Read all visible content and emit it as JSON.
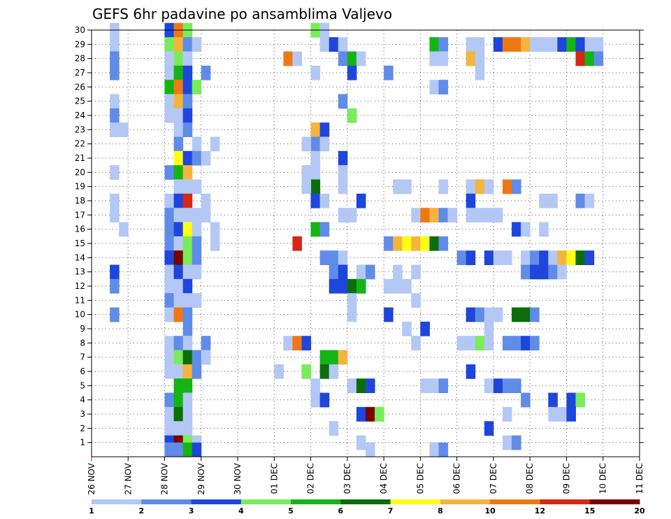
{
  "chart_data": {
    "type": "heatmap",
    "title": "GEFS 6hr padavine po ansamblima Valjevo",
    "xlabel": "",
    "ylabel": "",
    "x_ticks": [
      "26 NOV",
      "27 NOV",
      "28 NOV",
      "29 NOV",
      "30 NOV",
      "01 DEC",
      "02 DEC",
      "03 DEC",
      "04 DEC",
      "05 DEC",
      "06 DEC",
      "07 DEC",
      "08 DEC",
      "09 DEC",
      "10 DEC",
      "11 DEC"
    ],
    "y_ticks": [
      1,
      2,
      3,
      4,
      5,
      6,
      7,
      8,
      9,
      10,
      11,
      12,
      13,
      14,
      15,
      16,
      17,
      18,
      19,
      20,
      21,
      22,
      23,
      24,
      25,
      26,
      27,
      28,
      29,
      30
    ],
    "x_range_days": [
      0,
      15
    ],
    "y_range": [
      0,
      30
    ],
    "time_step_hours": 6,
    "grid": "dotted",
    "colorbar": {
      "position": "bottom",
      "labels": [
        "1",
        "2",
        "3",
        "4",
        "5",
        "6",
        "7",
        "8",
        "10",
        "12",
        "15",
        "20"
      ],
      "colors": [
        "#b4c8f5",
        "#5f8ce8",
        "#1e46dc",
        "#78ec5a",
        "#14b414",
        "#0b6e0b",
        "#ffff14",
        "#f5b43c",
        "#f07814",
        "#d72814",
        "#780000"
      ]
    },
    "cells": [
      [
        0.5,
        30,
        0
      ],
      [
        0.5,
        29,
        0
      ],
      [
        0.5,
        28,
        1
      ],
      [
        0.5,
        27,
        1
      ],
      [
        0.5,
        25,
        0
      ],
      [
        0.5,
        24,
        1
      ],
      [
        0.5,
        23,
        0
      ],
      [
        0.75,
        23,
        0
      ],
      [
        0.5,
        20,
        0
      ],
      [
        0.5,
        18,
        0
      ],
      [
        0.5,
        17,
        0
      ],
      [
        0.75,
        16,
        0
      ],
      [
        0.5,
        13,
        2
      ],
      [
        0.5,
        12,
        1
      ],
      [
        0.5,
        10,
        1
      ],
      [
        2,
        30,
        2
      ],
      [
        2.25,
        30,
        8
      ],
      [
        2.5,
        30,
        3
      ],
      [
        2,
        29,
        3
      ],
      [
        2.25,
        29,
        7
      ],
      [
        2.5,
        29,
        1
      ],
      [
        2.75,
        29,
        0
      ],
      [
        2,
        28,
        0
      ],
      [
        2.25,
        28,
        3
      ],
      [
        2.5,
        28,
        0
      ],
      [
        2,
        27,
        0
      ],
      [
        2.25,
        27,
        4
      ],
      [
        2.5,
        27,
        2
      ],
      [
        3,
        27,
        1
      ],
      [
        2,
        26,
        4
      ],
      [
        2.25,
        26,
        8
      ],
      [
        2.5,
        26,
        2
      ],
      [
        2.75,
        26,
        3
      ],
      [
        2,
        25,
        0
      ],
      [
        2.25,
        25,
        7
      ],
      [
        2.5,
        25,
        1
      ],
      [
        2,
        24,
        0
      ],
      [
        2.25,
        24,
        0
      ],
      [
        2.5,
        24,
        2
      ],
      [
        2.25,
        23,
        0
      ],
      [
        2.5,
        23,
        1
      ],
      [
        2.25,
        22,
        1
      ],
      [
        2.75,
        22,
        0
      ],
      [
        3.25,
        22,
        0
      ],
      [
        2.25,
        21,
        6
      ],
      [
        2.5,
        21,
        2
      ],
      [
        2.75,
        21,
        1
      ],
      [
        3,
        21,
        0
      ],
      [
        2,
        20,
        1
      ],
      [
        2.25,
        20,
        4
      ],
      [
        2.5,
        20,
        7
      ],
      [
        2.25,
        19,
        0
      ],
      [
        2.5,
        19,
        0
      ],
      [
        2.75,
        19,
        0
      ],
      [
        2,
        18,
        0
      ],
      [
        2.25,
        18,
        2
      ],
      [
        2.5,
        18,
        9
      ],
      [
        3,
        18,
        0
      ],
      [
        2,
        17,
        1
      ],
      [
        2.25,
        17,
        0
      ],
      [
        2.5,
        17,
        0
      ],
      [
        2.75,
        17,
        0
      ],
      [
        3,
        17,
        0
      ],
      [
        2,
        16,
        1
      ],
      [
        2.25,
        16,
        2
      ],
      [
        2.5,
        16,
        6
      ],
      [
        2.75,
        16,
        0
      ],
      [
        3.25,
        16,
        0
      ],
      [
        2,
        15,
        1
      ],
      [
        2.25,
        15,
        0
      ],
      [
        2.5,
        15,
        3
      ],
      [
        2.75,
        15,
        1
      ],
      [
        3.25,
        15,
        0
      ],
      [
        2,
        14,
        2
      ],
      [
        2.25,
        14,
        10
      ],
      [
        2.5,
        14,
        3
      ],
      [
        2.75,
        14,
        1
      ],
      [
        2,
        13,
        0
      ],
      [
        2.25,
        13,
        2
      ],
      [
        2.5,
        13,
        0
      ],
      [
        2.75,
        13,
        0
      ],
      [
        2,
        12,
        0
      ],
      [
        2.25,
        12,
        0
      ],
      [
        2.5,
        12,
        2
      ],
      [
        2,
        11,
        1
      ],
      [
        2.25,
        11,
        0
      ],
      [
        2.5,
        11,
        0
      ],
      [
        2.75,
        11,
        0
      ],
      [
        2,
        10,
        0
      ],
      [
        2.25,
        10,
        8
      ],
      [
        2.5,
        10,
        1
      ],
      [
        2.5,
        9,
        1
      ],
      [
        2,
        8,
        0
      ],
      [
        2.25,
        8,
        1
      ],
      [
        2.5,
        8,
        0
      ],
      [
        3,
        8,
        1
      ],
      [
        2,
        7,
        0
      ],
      [
        2.25,
        7,
        3
      ],
      [
        2.5,
        7,
        5
      ],
      [
        2.75,
        7,
        1
      ],
      [
        3,
        7,
        0
      ],
      [
        2,
        6,
        0
      ],
      [
        2.25,
        6,
        0
      ],
      [
        2.5,
        6,
        7
      ],
      [
        2.75,
        6,
        1
      ],
      [
        2.25,
        5,
        4
      ],
      [
        2.5,
        5,
        4
      ],
      [
        2,
        4,
        1
      ],
      [
        2.25,
        4,
        4
      ],
      [
        2.5,
        4,
        0
      ],
      [
        2,
        3,
        0
      ],
      [
        2.25,
        3,
        5
      ],
      [
        2.5,
        3,
        0
      ],
      [
        2,
        2,
        0
      ],
      [
        2.25,
        2,
        0
      ],
      [
        2.5,
        2,
        0
      ],
      [
        2,
        1,
        2
      ],
      [
        2.25,
        1,
        10
      ],
      [
        2.5,
        1,
        3
      ],
      [
        2.75,
        1,
        0
      ],
      [
        2,
        0.5,
        1
      ],
      [
        2.25,
        0.5,
        1
      ],
      [
        2.5,
        0.5,
        4
      ],
      [
        2.75,
        0.5,
        2
      ],
      [
        6,
        30,
        3
      ],
      [
        6.25,
        30,
        0
      ],
      [
        6.25,
        29,
        0
      ],
      [
        6.5,
        29,
        2
      ],
      [
        6.75,
        29,
        0
      ],
      [
        5.25,
        28,
        8
      ],
      [
        5.5,
        28,
        0
      ],
      [
        6.75,
        28,
        1
      ],
      [
        7,
        28,
        4
      ],
      [
        7.25,
        28,
        0
      ],
      [
        6,
        27,
        0
      ],
      [
        7,
        27,
        2
      ],
      [
        8,
        27,
        1
      ],
      [
        6.75,
        25,
        1
      ],
      [
        7,
        24,
        3
      ],
      [
        6,
        23,
        7
      ],
      [
        6.25,
        23,
        2
      ],
      [
        6,
        22,
        1
      ],
      [
        6.25,
        22,
        0
      ],
      [
        5.75,
        22,
        0
      ],
      [
        6,
        21,
        0
      ],
      [
        6.75,
        21,
        2
      ],
      [
        5.75,
        20,
        0
      ],
      [
        6,
        20,
        0
      ],
      [
        6.75,
        20,
        0
      ],
      [
        6,
        19,
        5
      ],
      [
        5.75,
        19,
        0
      ],
      [
        6.75,
        19,
        0
      ],
      [
        6,
        18,
        2
      ],
      [
        6.25,
        18,
        0
      ],
      [
        7.25,
        18,
        2
      ],
      [
        6.75,
        17,
        0
      ],
      [
        7,
        17,
        0
      ],
      [
        6,
        16,
        4
      ],
      [
        6.25,
        16,
        1
      ],
      [
        5.5,
        15,
        9
      ],
      [
        6.25,
        14,
        1
      ],
      [
        6.5,
        14,
        1
      ],
      [
        6.75,
        14,
        0
      ],
      [
        6.5,
        13,
        1
      ],
      [
        6.75,
        13,
        2
      ],
      [
        7.25,
        13,
        0
      ],
      [
        7.5,
        13,
        1
      ],
      [
        6.5,
        12,
        2
      ],
      [
        6.75,
        12,
        2
      ],
      [
        7,
        12,
        5
      ],
      [
        7.25,
        12,
        4
      ],
      [
        7,
        11,
        0
      ],
      [
        7,
        10,
        0
      ],
      [
        5.25,
        8,
        0
      ],
      [
        5.5,
        8,
        8
      ],
      [
        5.75,
        8,
        2
      ],
      [
        6.25,
        7,
        4
      ],
      [
        6.5,
        7,
        4
      ],
      [
        6.75,
        7,
        7
      ],
      [
        5,
        6,
        0
      ],
      [
        5.75,
        6,
        3
      ],
      [
        6.25,
        6,
        5
      ],
      [
        6.5,
        6,
        0
      ],
      [
        6,
        5,
        0
      ],
      [
        6,
        4,
        0
      ],
      [
        6.25,
        4,
        2
      ],
      [
        7,
        5,
        0
      ],
      [
        7.25,
        5,
        5
      ],
      [
        7.5,
        5,
        2
      ],
      [
        7.25,
        3,
        2
      ],
      [
        7.5,
        3,
        10
      ],
      [
        7.75,
        3,
        3
      ],
      [
        6.5,
        2,
        0
      ],
      [
        7.25,
        1,
        0
      ],
      [
        7.5,
        0.5,
        0
      ],
      [
        9.25,
        29,
        4
      ],
      [
        9.5,
        29,
        1
      ],
      [
        9.25,
        28,
        0
      ],
      [
        9.5,
        28,
        0
      ],
      [
        9.25,
        26,
        0
      ],
      [
        9.5,
        26,
        1
      ],
      [
        8.25,
        19,
        0
      ],
      [
        8.5,
        19,
        0
      ],
      [
        9.5,
        19,
        0
      ],
      [
        8.75,
        17,
        0
      ],
      [
        9,
        17,
        8
      ],
      [
        9.25,
        17,
        7
      ],
      [
        9.5,
        17,
        1
      ],
      [
        9.75,
        17,
        0
      ],
      [
        8,
        15,
        1
      ],
      [
        8.25,
        15,
        7
      ],
      [
        8.5,
        15,
        6
      ],
      [
        8.75,
        15,
        7
      ],
      [
        9,
        15,
        6
      ],
      [
        9.25,
        15,
        5
      ],
      [
        9.5,
        15,
        1
      ],
      [
        8,
        10,
        2
      ],
      [
        8.5,
        9,
        0
      ],
      [
        9,
        9,
        2
      ],
      [
        8.75,
        8,
        0
      ],
      [
        9,
        5,
        0
      ],
      [
        9.25,
        5,
        0
      ],
      [
        9.5,
        5,
        1
      ],
      [
        9.25,
        0.5,
        0
      ],
      [
        9.5,
        0.5,
        1
      ],
      [
        8.25,
        12,
        0
      ],
      [
        8.5,
        12,
        0
      ],
      [
        8.75,
        11,
        0
      ],
      [
        8.75,
        13,
        0
      ],
      [
        8,
        12,
        0
      ],
      [
        8.25,
        13,
        0
      ],
      [
        10.25,
        29,
        0
      ],
      [
        10.5,
        29,
        0
      ],
      [
        10.25,
        28,
        7
      ],
      [
        10.5,
        28,
        0
      ],
      [
        10.5,
        27,
        0
      ],
      [
        11,
        29,
        2
      ],
      [
        11.25,
        29,
        8
      ],
      [
        11.5,
        29,
        8
      ],
      [
        11.75,
        29,
        7
      ],
      [
        12,
        29,
        0
      ],
      [
        12.25,
        29,
        0
      ],
      [
        12.5,
        29,
        0
      ],
      [
        12.75,
        29,
        2
      ],
      [
        13,
        29,
        4
      ],
      [
        13.25,
        29,
        2
      ],
      [
        13.5,
        29,
        0
      ],
      [
        13.75,
        29,
        0
      ],
      [
        13.25,
        28,
        9
      ],
      [
        13.5,
        28,
        4
      ],
      [
        13.75,
        28,
        1
      ],
      [
        10.25,
        19,
        0
      ],
      [
        10.5,
        19,
        7
      ],
      [
        10.75,
        19,
        0
      ],
      [
        11.25,
        19,
        8
      ],
      [
        11.5,
        19,
        1
      ],
      [
        10.25,
        18,
        2
      ],
      [
        12.25,
        18,
        0
      ],
      [
        12.5,
        18,
        0
      ],
      [
        13.25,
        18,
        1
      ],
      [
        13.5,
        18,
        0
      ],
      [
        10.25,
        17,
        0
      ],
      [
        10.5,
        17,
        0
      ],
      [
        10.75,
        17,
        0
      ],
      [
        11,
        17,
        0
      ],
      [
        11.5,
        16,
        2
      ],
      [
        11.75,
        16,
        0
      ],
      [
        12.25,
        16,
        0
      ],
      [
        10,
        14,
        1
      ],
      [
        10.25,
        14,
        2
      ],
      [
        10.75,
        14,
        2
      ],
      [
        11,
        14,
        0
      ],
      [
        11.25,
        14,
        0
      ],
      [
        11.75,
        14,
        0
      ],
      [
        12,
        14,
        1
      ],
      [
        12.25,
        14,
        2
      ],
      [
        12.5,
        14,
        0
      ],
      [
        12.75,
        14,
        7
      ],
      [
        13,
        14,
        6
      ],
      [
        13.25,
        14,
        5
      ],
      [
        13.5,
        14,
        2
      ],
      [
        11.75,
        13,
        1
      ],
      [
        12,
        13,
        2
      ],
      [
        12.25,
        13,
        2
      ],
      [
        12.5,
        13,
        1
      ],
      [
        12.75,
        13,
        0
      ],
      [
        10.25,
        10,
        2
      ],
      [
        10.5,
        10,
        1
      ],
      [
        10.75,
        10,
        0
      ],
      [
        11,
        10,
        0
      ],
      [
        11.5,
        10,
        5
      ],
      [
        11.75,
        10,
        5
      ],
      [
        12,
        10,
        1
      ],
      [
        10.75,
        9,
        0
      ],
      [
        10,
        8,
        0
      ],
      [
        10.25,
        8,
        0
      ],
      [
        10.5,
        8,
        3
      ],
      [
        10.75,
        8,
        0
      ],
      [
        11.25,
        8,
        1
      ],
      [
        11.5,
        8,
        1
      ],
      [
        11.75,
        8,
        2
      ],
      [
        12,
        8,
        1
      ],
      [
        10.25,
        6,
        2
      ],
      [
        10.75,
        5,
        0
      ],
      [
        11,
        5,
        2
      ],
      [
        11.25,
        5,
        1
      ],
      [
        11.5,
        5,
        1
      ],
      [
        11.75,
        4,
        1
      ],
      [
        12.5,
        4,
        2
      ],
      [
        13,
        4,
        2
      ],
      [
        13.25,
        4,
        3
      ],
      [
        12.5,
        3,
        0
      ],
      [
        12.75,
        3,
        0
      ],
      [
        13,
        3,
        2
      ],
      [
        11.25,
        3,
        0
      ],
      [
        10.75,
        2,
        2
      ],
      [
        11.25,
        1,
        0
      ],
      [
        11.5,
        1,
        1
      ]
    ]
  }
}
